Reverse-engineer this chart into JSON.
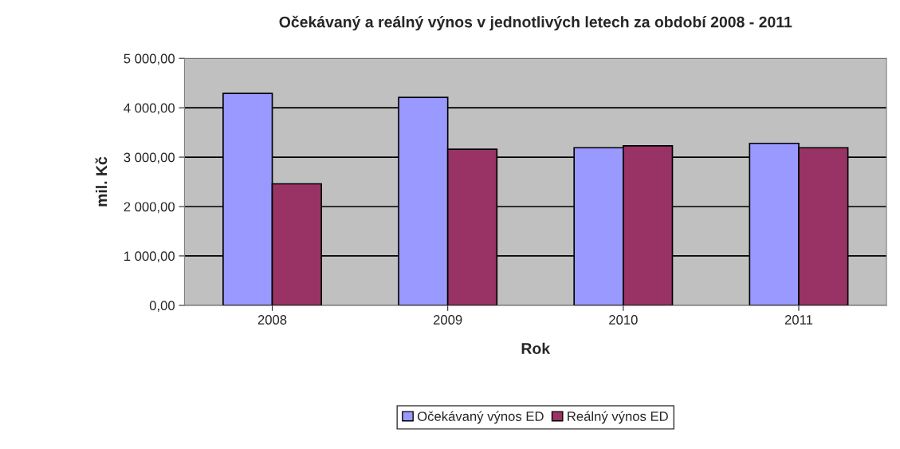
{
  "chart_data": {
    "type": "bar",
    "title": "Očekávaný a reálný výnos v jednotlivých letech za období 2008 - 2011",
    "xlabel": "Rok",
    "ylabel": "mil. Kč",
    "categories": [
      "2008",
      "2009",
      "2010",
      "2011"
    ],
    "series": [
      {
        "name": "Očekávaný výnos ED",
        "color": "#9999ff",
        "values": [
          4290,
          4210,
          3190,
          3280
        ]
      },
      {
        "name": "Reálný výnos ED",
        "color": "#993366",
        "values": [
          2460,
          3160,
          3230,
          3190
        ]
      }
    ],
    "ylim": [
      0,
      5000
    ],
    "yticks": [
      {
        "value": 0,
        "label": "0,00"
      },
      {
        "value": 1000,
        "label": "1 000,00"
      },
      {
        "value": 2000,
        "label": "2 000,00"
      },
      {
        "value": 3000,
        "label": "3 000,00"
      },
      {
        "value": 4000,
        "label": "4 000,00"
      },
      {
        "value": 5000,
        "label": "5 000,00"
      }
    ],
    "grid": "y",
    "legend": "bottom"
  }
}
